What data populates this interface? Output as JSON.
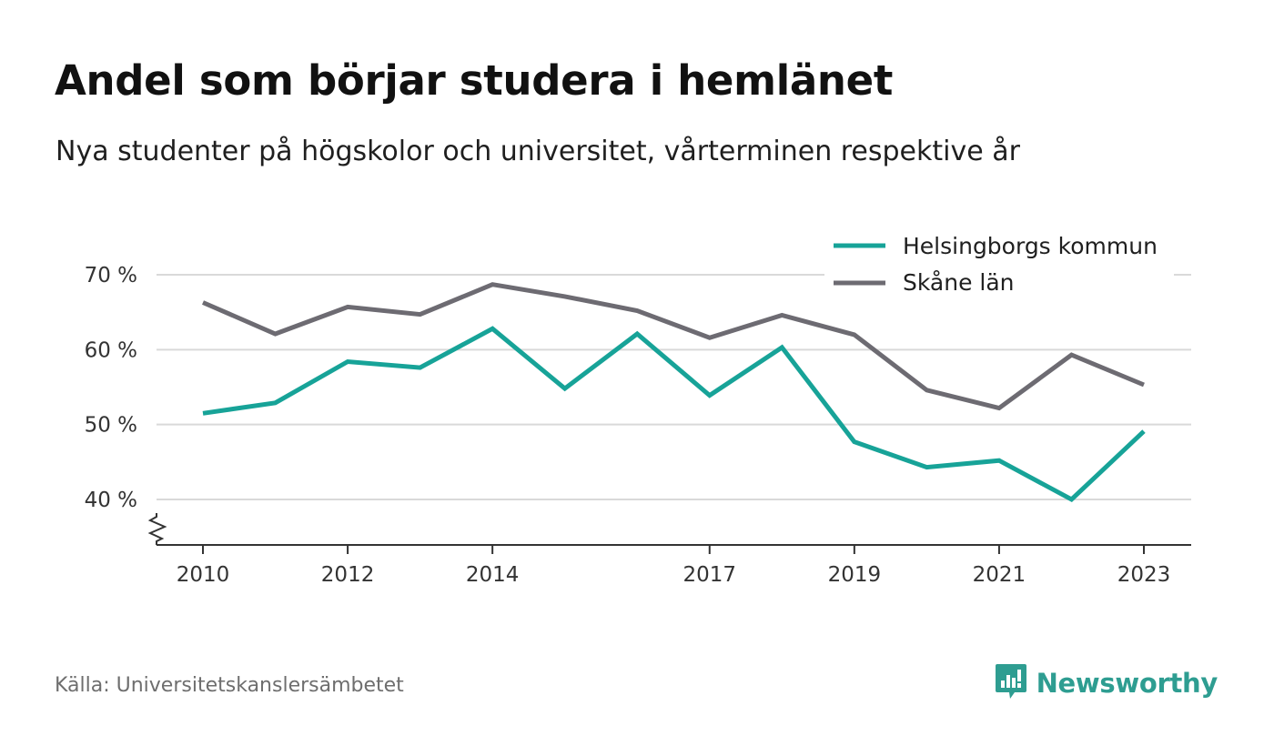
{
  "header": {
    "title": "Andel som börjar studera i hemlänet",
    "subtitle": "Nya studenter på högskolor och universitet, vårterminen respektive år"
  },
  "footer": {
    "source": "Källa: Universitetskanslersämbetet",
    "brand": "Newsworthy",
    "brand_icon": "newsworthy-logo-icon"
  },
  "colors": {
    "helsingborg": "#17a398",
    "skane": "#6d6b72",
    "grid": "#d9d9d9",
    "axis": "#333333",
    "brand": "#2e9d91"
  },
  "chart_data": {
    "type": "line",
    "x": [
      2010,
      2011,
      2012,
      2013,
      2014,
      2015,
      2016,
      2017,
      2018,
      2019,
      2020,
      2021,
      2022,
      2023
    ],
    "x_tick_labels": [
      "2010",
      "2012",
      "2014",
      "2017",
      "2019",
      "2021",
      "2023"
    ],
    "y_ticks": [
      40,
      50,
      60,
      70
    ],
    "y_tick_labels": [
      "40 %",
      "50 %",
      "60 %",
      "70 %"
    ],
    "ylim": [
      34,
      72
    ],
    "y_axis_break": true,
    "grid": true,
    "legend_position": "top-right",
    "series": [
      {
        "name": "Helsingborgs kommun",
        "color_key": "helsingborg",
        "values": [
          51.5,
          52.9,
          58.4,
          57.6,
          62.8,
          54.8,
          62.1,
          53.9,
          60.3,
          47.7,
          44.3,
          45.2,
          40.0,
          49.1
        ]
      },
      {
        "name": "Skåne län",
        "color_key": "skane",
        "values": [
          66.3,
          62.1,
          65.7,
          64.7,
          68.7,
          67.1,
          65.2,
          61.6,
          64.6,
          62.0,
          54.6,
          52.2,
          59.3,
          55.3
        ]
      }
    ]
  }
}
